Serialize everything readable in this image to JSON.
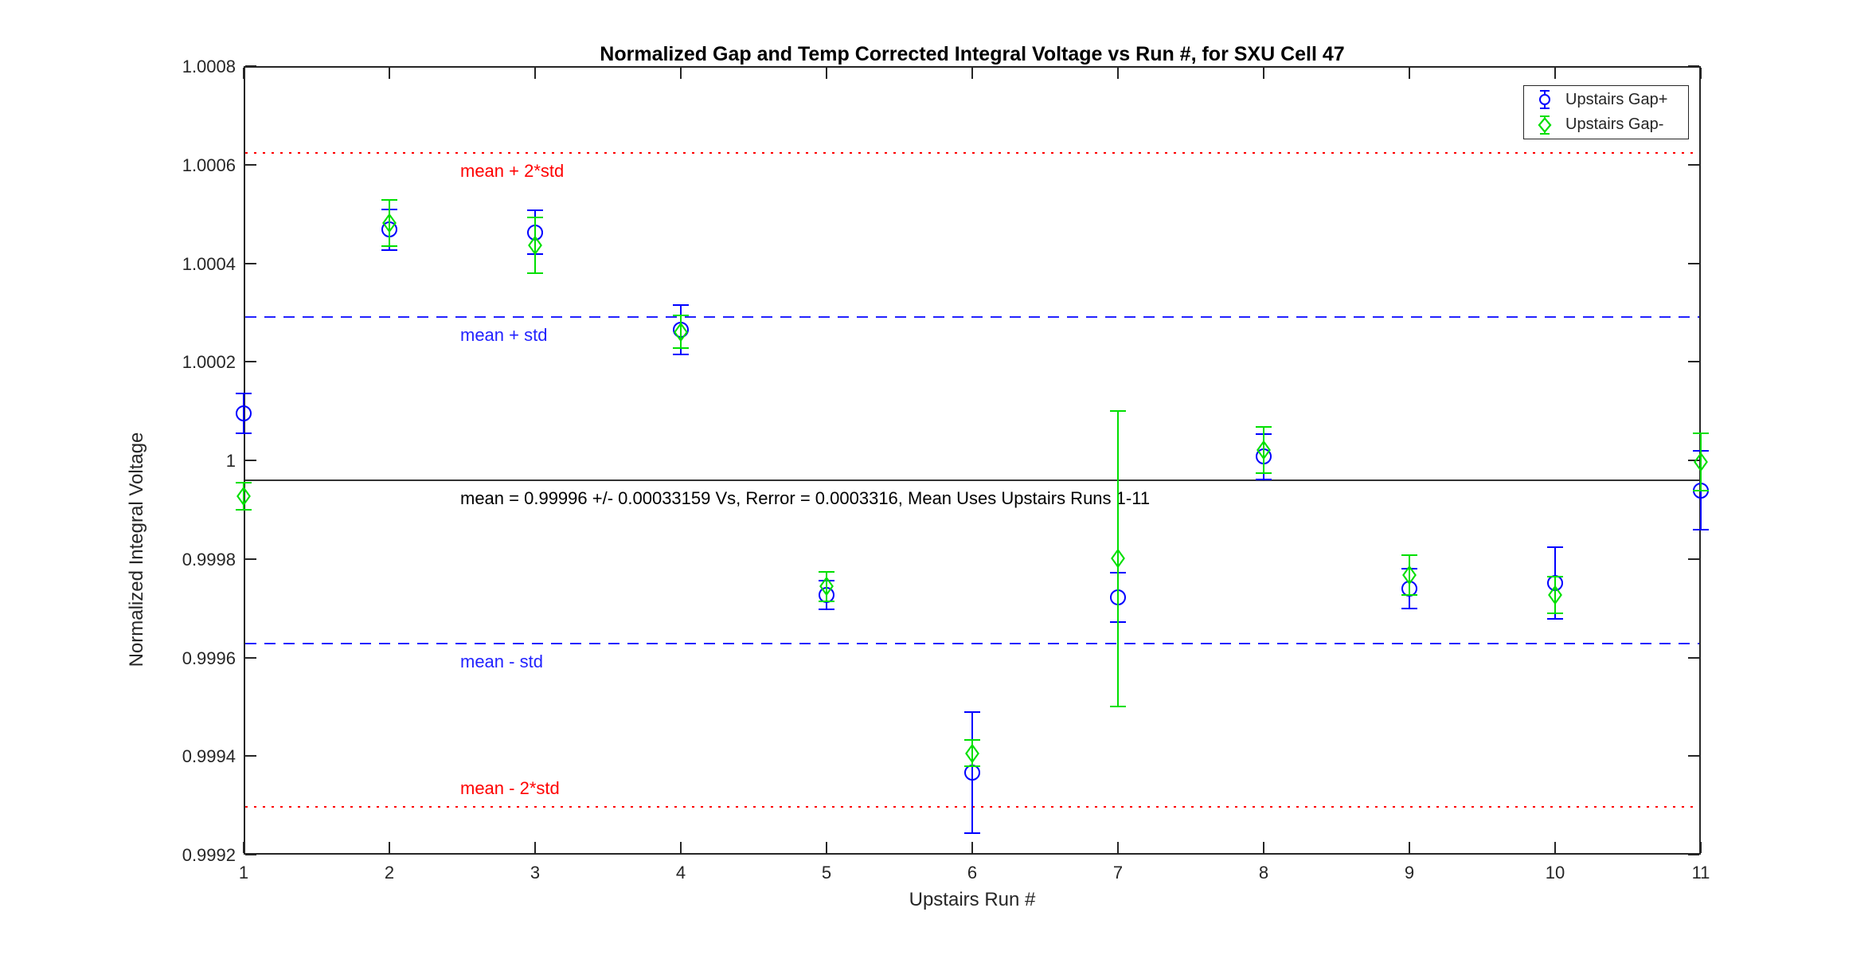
{
  "figure": {
    "title": "Normalized Gap and Temp Corrected Integral Voltage vs Run #, for SXU Cell 47",
    "xlabel": "Upstairs Run #",
    "ylabel": "Normalized Integral Voltage",
    "background_color": "#ffffff",
    "axis_color": "#262626"
  },
  "legend": {
    "items": [
      {
        "label": "Upstairs Gap+",
        "marker": "circle",
        "color": "#0000ff"
      },
      {
        "label": "Upstairs Gap-",
        "marker": "diamond",
        "color": "#00df00"
      }
    ],
    "position": "top-right"
  },
  "chart_data": {
    "type": "scatter",
    "x": [
      1,
      2,
      3,
      4,
      5,
      6,
      7,
      8,
      9,
      10,
      11
    ],
    "xlim": [
      1,
      11
    ],
    "ylim": [
      0.9992,
      1.0008
    ],
    "xtick_labels": [
      "1",
      "2",
      "3",
      "4",
      "5",
      "6",
      "7",
      "8",
      "9",
      "10",
      "11"
    ],
    "ytick_values": [
      0.9992,
      0.9994,
      0.9996,
      0.9998,
      1.0,
      1.0002,
      1.0004,
      1.0006,
      1.0008
    ],
    "ytick_labels": [
      "0.9992",
      "0.9994",
      "0.9996",
      "0.9998",
      "1",
      "1.0002",
      "1.0004",
      "1.0006",
      "1.0008"
    ],
    "grid": false,
    "series": [
      {
        "name": "Upstairs Gap+",
        "marker": "circle",
        "color": "#0000ff",
        "values": [
          1.000095,
          1.000468,
          1.000463,
          1.000265,
          0.999727,
          0.999366,
          0.999722,
          1.000008,
          0.99974,
          0.999751,
          0.999939
        ],
        "errors": [
          4e-05,
          4.1e-05,
          4.5e-05,
          5e-05,
          2.9e-05,
          0.000123,
          5e-05,
          4.6e-05,
          4e-05,
          7.3e-05,
          8e-05
        ]
      },
      {
        "name": "Upstairs Gap-",
        "marker": "diamond",
        "color": "#00df00",
        "values": [
          0.999927,
          1.000482,
          1.000436,
          1.000261,
          0.999744,
          0.999406,
          0.999801,
          1.000021,
          0.999767,
          0.999727,
          0.999997
        ],
        "errors": [
          2.8e-05,
          4.7e-05,
          5.7e-05,
          3.3e-05,
          3e-05,
          2.7e-05,
          0.0003,
          4.7e-05,
          4e-05,
          3.7e-05,
          5.8e-05
        ]
      }
    ],
    "statistics": {
      "mean": 0.99996,
      "std": 0.00033159,
      "rerror": 0.0003316
    },
    "reference_lines": [
      {
        "id": "mean-plus-2std",
        "value": 1.0006232,
        "style": "dotted",
        "color": "#ff0000",
        "label": "mean + 2*std",
        "label_side": "below"
      },
      {
        "id": "mean-plus-std",
        "value": 1.0002916,
        "style": "dashed",
        "color": "#2222ff",
        "label": "mean + std",
        "label_side": "below"
      },
      {
        "id": "mean",
        "value": 0.99996,
        "style": "solid",
        "color": "#333333",
        "label": "mean = 0.99996 +/- 0.00033159 Vs, Rerror = 0.0003316, Mean Uses Upstairs Runs 1-11",
        "label_side": "below",
        "label_color": "#000000"
      },
      {
        "id": "mean-minus-std",
        "value": 0.9996284,
        "style": "dashed",
        "color": "#2222ff",
        "label": "mean - std",
        "label_side": "below"
      },
      {
        "id": "mean-minus-2std",
        "value": 0.9992968,
        "style": "dotted",
        "color": "#ff0000",
        "label": "mean - 2*std",
        "label_side": "above"
      }
    ]
  }
}
